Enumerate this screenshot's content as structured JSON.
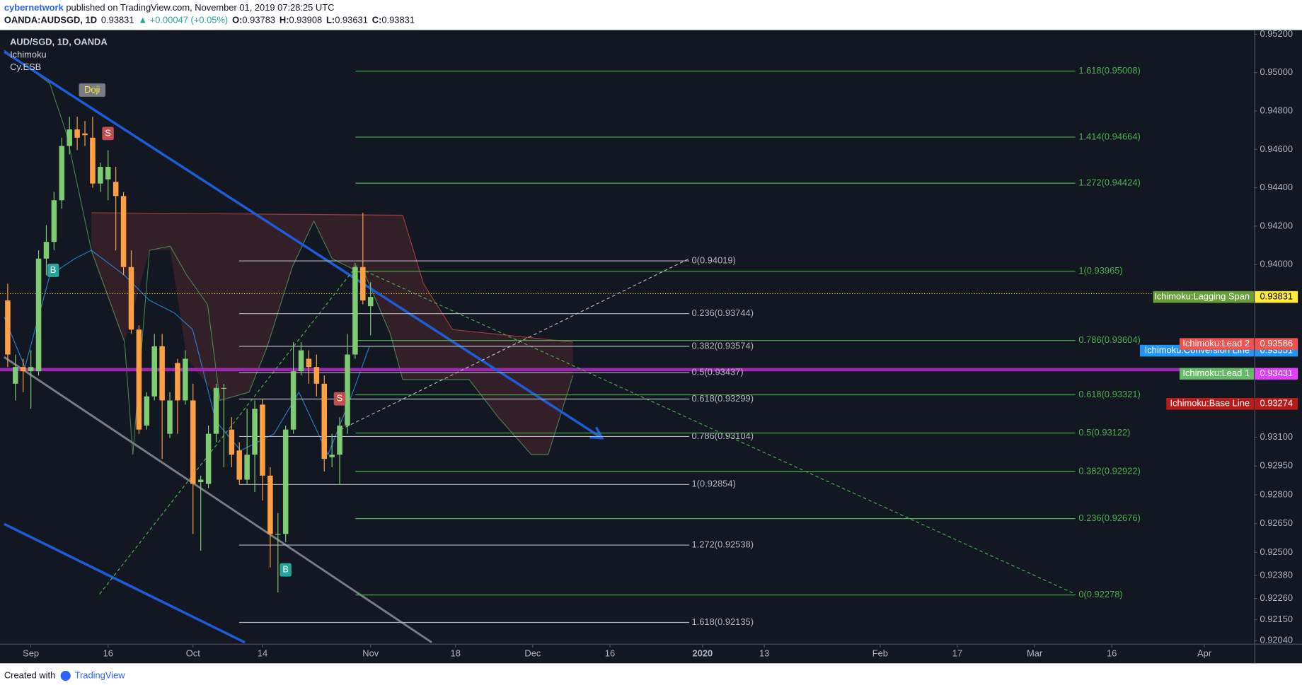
{
  "header": {
    "author": "cybernetwork",
    "published": " published on TradingView.com, November 01, 2019 07:28:25 UTC",
    "symbol": "OANDA:AUDSGD, 1D",
    "last": "0.93831",
    "change": "▲ +0.00047 (+0.05%)",
    "ohlc": [
      {
        "label": "O:",
        "value": "0.93783"
      },
      {
        "label": "H:",
        "value": "0.93908"
      },
      {
        "label": "L:",
        "value": "0.93631"
      },
      {
        "label": "C:",
        "value": "0.93831"
      }
    ]
  },
  "footer": {
    "created": "Created with",
    "brand": "TradingView"
  },
  "chart_data": {
    "type": "candlestick",
    "indicators": [
      "Ichimoku",
      "Cy.ESB"
    ],
    "series": [
      {
        "name": "AUD/SGD, 1D, OANDA",
        "up_color": "#7ecb73",
        "down_color": "#ff9f43",
        "ohlc": [
          [
            0.93813,
            0.939,
            0.93466,
            0.93531
          ],
          [
            0.93379,
            0.93531,
            0.93292,
            0.93466
          ],
          [
            0.93466,
            0.93509,
            0.93335,
            0.93444
          ],
          [
            0.93444,
            0.93553,
            0.93248,
            0.93466
          ],
          [
            0.93444,
            0.94074,
            0.93422,
            0.94031
          ],
          [
            0.94031,
            0.94205,
            0.93944,
            0.94118
          ],
          [
            0.94118,
            0.94378,
            0.94074,
            0.94335
          ],
          [
            0.94335,
            0.94661,
            0.94291,
            0.94618
          ],
          [
            0.94618,
            0.9477,
            0.94574,
            0.94704
          ],
          [
            0.94704,
            0.9477,
            0.94596,
            0.94661
          ],
          [
            0.94683,
            0.94748,
            0.94618,
            0.94674
          ],
          [
            0.94661,
            0.9477,
            0.944,
            0.94422
          ],
          [
            0.94422,
            0.94531,
            0.94378,
            0.94509
          ],
          [
            0.94444,
            0.94596,
            0.94335,
            0.94509
          ],
          [
            0.94431,
            0.94509,
            0.94074,
            0.94357
          ],
          [
            0.94357,
            0.94378,
            0.93944,
            0.93987
          ],
          [
            0.93987,
            0.94074,
            0.93639,
            0.93661
          ],
          [
            0.93661,
            0.93683,
            0.93118,
            0.9314
          ],
          [
            0.93161,
            0.93335,
            0.9314,
            0.93313
          ],
          [
            0.93313,
            0.93639,
            0.93292,
            0.93574
          ],
          [
            0.93574,
            0.93639,
            0.92987,
            0.93292
          ],
          [
            0.93118,
            0.93335,
            0.93096,
            0.93292
          ],
          [
            0.93487,
            0.93509,
            0.93118,
            0.93292
          ],
          [
            0.93292,
            0.93553,
            0.9327,
            0.93509
          ],
          [
            0.93292,
            0.93379,
            0.92596,
            0.92857
          ],
          [
            0.92866,
            0.929,
            0.92509,
            0.92879
          ],
          [
            0.92857,
            0.93161,
            0.92835,
            0.93118
          ],
          [
            0.93118,
            0.93379,
            0.93074,
            0.93357
          ],
          [
            0.93357,
            0.93379,
            0.92944,
            0.93357
          ],
          [
            0.9314,
            0.93205,
            0.92944,
            0.93009
          ],
          [
            0.93031,
            0.93074,
            0.92857,
            0.92879
          ],
          [
            0.92879,
            0.93248,
            0.92857,
            0.93009
          ],
          [
            0.93009,
            0.93292,
            0.92814,
            0.93248
          ],
          [
            0.9327,
            0.933,
            0.9277,
            0.929
          ],
          [
            0.929,
            0.92944,
            0.92422,
            0.92596
          ],
          [
            0.92596,
            0.92705,
            0.92292,
            0.92596
          ],
          [
            0.92596,
            0.93161,
            0.92553,
            0.9314
          ],
          [
            0.9314,
            0.93596,
            0.93118,
            0.93444
          ],
          [
            0.93444,
            0.93596,
            0.93422,
            0.93553
          ],
          [
            0.93509,
            0.93553,
            0.93379,
            0.93466
          ],
          [
            0.93466,
            0.93531,
            0.93313,
            0.93379
          ],
          [
            0.93379,
            0.93422,
            0.92922,
            0.92987
          ],
          [
            0.92996,
            0.93118,
            0.92944,
            0.93009
          ],
          [
            0.93009,
            0.93205,
            0.92857,
            0.93161
          ],
          [
            0.93161,
            0.93639,
            0.93118,
            0.93531
          ],
          [
            0.93531,
            0.94009,
            0.93509,
            0.93987
          ],
          [
            0.93987,
            0.9427,
            0.93792,
            0.93813
          ],
          [
            0.93783,
            0.93908,
            0.93631,
            0.93831
          ]
        ]
      }
    ],
    "xlim": [
      -1,
      161.4
    ],
    "xticks": [
      {
        "value": 3,
        "label": "Sep"
      },
      {
        "value": 13,
        "label": "16"
      },
      {
        "value": 24,
        "label": "Oct"
      },
      {
        "value": 33,
        "label": "14"
      },
      {
        "value": 47,
        "label": "Nov"
      },
      {
        "value": 58,
        "label": "18"
      },
      {
        "value": 68,
        "label": "Dec"
      },
      {
        "value": 78,
        "label": "16"
      },
      {
        "value": 90,
        "label": "2020"
      },
      {
        "value": 98,
        "label": "13"
      },
      {
        "value": 113,
        "label": "Feb"
      },
      {
        "value": 123,
        "label": "17"
      },
      {
        "value": 133,
        "label": "Mar"
      },
      {
        "value": 143,
        "label": "16"
      },
      {
        "value": 155,
        "label": "Apr"
      }
    ],
    "ylim": [
      0.92022,
      0.95222
    ],
    "yticks": [
      {
        "value": 0.952,
        "label": "0.95200"
      },
      {
        "value": 0.95,
        "label": "0.95000"
      },
      {
        "value": 0.948,
        "label": "0.94800"
      },
      {
        "value": 0.946,
        "label": "0.94600"
      },
      {
        "value": 0.944,
        "label": "0.94400"
      },
      {
        "value": 0.942,
        "label": "0.94200"
      },
      {
        "value": 0.94,
        "label": "0.94000"
      },
      {
        "value": 0.931,
        "label": "0.93100"
      },
      {
        "value": 0.9295,
        "label": "0.92950"
      },
      {
        "value": 0.928,
        "label": "0.92800"
      },
      {
        "value": 0.9265,
        "label": "0.92650"
      },
      {
        "value": 0.925,
        "label": "0.92500"
      },
      {
        "value": 0.9238,
        "label": "0.92380"
      },
      {
        "value": 0.9226,
        "label": "0.92260"
      },
      {
        "value": 0.9215,
        "label": "0.92150"
      },
      {
        "value": 0.9204,
        "label": "0.92040"
      }
    ],
    "grid": false,
    "fibs": [
      {
        "color": "#4caf50",
        "levels": [
          {
            "value": 0.95008,
            "label": "1.618(0.95008)"
          },
          {
            "value": 0.94664,
            "label": "1.414(0.94664)"
          },
          {
            "value": 0.94424,
            "label": "1.272(0.94424)"
          },
          {
            "value": 0.93965,
            "label": "1(0.93965)"
          },
          {
            "value": 0.93604,
            "label": "0.786(0.93604)"
          },
          {
            "value": 0.93321,
            "label": "0.618(0.93321)"
          },
          {
            "value": 0.93122,
            "label": "0.5(0.93122)"
          },
          {
            "value": 0.92922,
            "label": "0.382(0.92922)"
          },
          {
            "value": 0.92676,
            "label": "0.236(0.92676)"
          },
          {
            "value": 0.92278,
            "label": "0(0.92278)"
          }
        ]
      },
      {
        "color": "#b2b5be",
        "levels": [
          {
            "value": 0.94019,
            "label": "0(0.94019)"
          },
          {
            "value": 0.93744,
            "label": "0.236(0.93744)"
          },
          {
            "value": 0.93574,
            "label": "0.382(0.93574)"
          },
          {
            "value": 0.93437,
            "label": "0.5(0.93437)"
          },
          {
            "value": 0.93299,
            "label": "0.618(0.93299)"
          },
          {
            "value": 0.93104,
            "label": "0.786(0.93104)"
          },
          {
            "value": 0.92854,
            "label": "1(0.92854)"
          },
          {
            "value": 0.92538,
            "label": "1.272(0.92538)"
          },
          {
            "value": 0.92135,
            "label": "1.618(0.92135)"
          }
        ]
      }
    ],
    "price_tags": [
      {
        "name": "Ichimoku:Lagging Span",
        "value": 0.93831,
        "color": "#689f38",
        "value_color": "#ffeb3b",
        "value_text": "#000000"
      },
      {
        "name": "Ichimoku:Conversion Line",
        "value": 0.93551,
        "color": "#2196f3",
        "value_color": "#2196f3",
        "value_text": "#ffffff"
      },
      {
        "name": "Ichimoku:Lead 2",
        "value": 0.93586,
        "color": "#ef5350",
        "value_color": "#ef5350",
        "value_text": "#ffffff"
      },
      {
        "name": "Ichimoku:Lead 1",
        "value": 0.93431,
        "color": "#66bb6a",
        "value_color": "#e040fb",
        "value_text": "#ffffff"
      },
      {
        "name": "Ichimoku:Base Line",
        "value": 0.93274,
        "color": "#b71c1c",
        "value_color": "#b71c1c",
        "value_text": "#ffffff"
      }
    ],
    "markers": [
      {
        "label": "Doji",
        "color": "#787b86"
      },
      {
        "label": "S",
        "color": "#c0504d"
      },
      {
        "label": "B",
        "color": "#26a69a"
      },
      {
        "label": "B",
        "color": "#26a69a"
      },
      {
        "label": "S",
        "color": "#c0504d"
      }
    ]
  }
}
